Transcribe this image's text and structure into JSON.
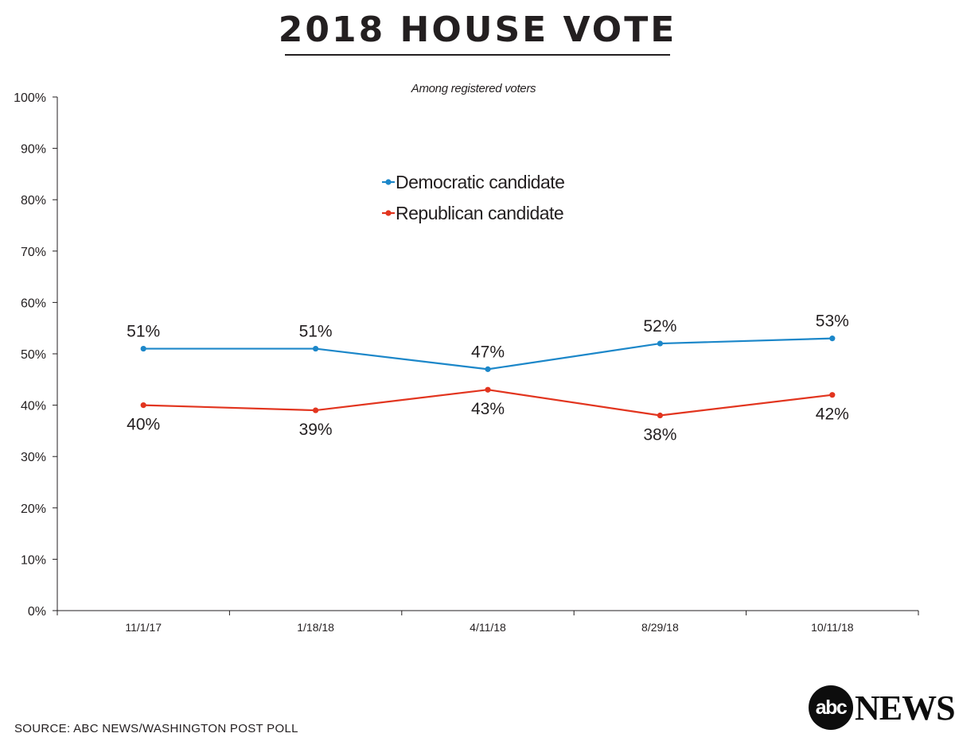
{
  "header": {
    "title": "2018 HOUSE VOTE",
    "subtitle": "Among registered voters"
  },
  "footer": {
    "source": "SOURCE: ABC NEWS/WASHINGTON POST POLL",
    "logo_mark": "abc",
    "logo_word": "NEWS"
  },
  "chart_data": {
    "type": "line",
    "title": "2018 HOUSE VOTE",
    "subtitle": "Among registered voters",
    "categories": [
      "11/1/17",
      "1/18/18",
      "4/11/18",
      "8/29/18",
      "10/11/18"
    ],
    "series": [
      {
        "name": "Democratic candidate",
        "color": "#1c87c9",
        "values": [
          51,
          51,
          47,
          52,
          53
        ],
        "labels": [
          "51%",
          "51%",
          "47%",
          "52%",
          "53%"
        ],
        "label_position": "above"
      },
      {
        "name": "Republican candidate",
        "color": "#e2351f",
        "values": [
          40,
          39,
          43,
          38,
          42
        ],
        "labels": [
          "40%",
          "39%",
          "43%",
          "38%",
          "42%"
        ],
        "label_position": "below"
      }
    ],
    "ylim": [
      0,
      100
    ],
    "yticks": [
      "0%",
      "10%",
      "20%",
      "30%",
      "40%",
      "50%",
      "60%",
      "70%",
      "80%",
      "90%",
      "100%"
    ],
    "xlabel": "",
    "ylabel": "",
    "grid": false,
    "legend": "top-center"
  }
}
